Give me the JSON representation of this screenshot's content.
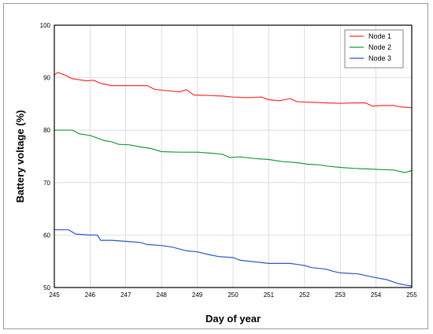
{
  "chart_data": {
    "type": "line",
    "xlabel": "Day of year",
    "ylabel": "Battery voltage (%)",
    "xlim": [
      245,
      255
    ],
    "ylim": [
      50,
      100
    ],
    "xticks": [
      "245",
      "246",
      "247",
      "248",
      "249",
      "250",
      "251",
      "252",
      "253",
      "254",
      "255"
    ],
    "yticks": [
      "50",
      "60",
      "70",
      "80",
      "90",
      "100"
    ],
    "grid": true,
    "legend_position": "top-right",
    "series": [
      {
        "name": "Node 1",
        "color": "#ff3030",
        "points": [
          [
            245,
            90.5
          ],
          [
            245.1,
            91
          ],
          [
            245.3,
            90.5
          ],
          [
            245.5,
            89.8
          ],
          [
            245.9,
            89.4
          ],
          [
            246.1,
            89.5
          ],
          [
            246.3,
            88.9
          ],
          [
            246.6,
            88.5
          ],
          [
            247,
            88.5
          ],
          [
            247.6,
            88.5
          ],
          [
            247.8,
            87.8
          ],
          [
            248.2,
            87.5
          ],
          [
            248.5,
            87.3
          ],
          [
            248.7,
            87.7
          ],
          [
            248.9,
            86.7
          ],
          [
            249.3,
            86.6
          ],
          [
            249.7,
            86.5
          ],
          [
            250,
            86.3
          ],
          [
            250.4,
            86.2
          ],
          [
            250.8,
            86.3
          ],
          [
            251,
            85.8
          ],
          [
            251.3,
            85.6
          ],
          [
            251.6,
            86
          ],
          [
            251.8,
            85.4
          ],
          [
            252.2,
            85.3
          ],
          [
            252.6,
            85.2
          ],
          [
            253,
            85.1
          ],
          [
            253.4,
            85.2
          ],
          [
            253.7,
            85.2
          ],
          [
            253.9,
            84.6
          ],
          [
            254.2,
            84.7
          ],
          [
            254.5,
            84.7
          ],
          [
            254.7,
            84.4
          ],
          [
            255,
            84.3
          ]
        ]
      },
      {
        "name": "Node 2",
        "color": "#1a9a3a",
        "points": [
          [
            245,
            80
          ],
          [
            245.5,
            80
          ],
          [
            245.7,
            79.3
          ],
          [
            246,
            79
          ],
          [
            246.2,
            78.5
          ],
          [
            246.4,
            78
          ],
          [
            246.6,
            77.8
          ],
          [
            246.8,
            77.3
          ],
          [
            247.1,
            77.2
          ],
          [
            247.4,
            76.8
          ],
          [
            247.7,
            76.5
          ],
          [
            248,
            75.9
          ],
          [
            248.5,
            75.8
          ],
          [
            249,
            75.8
          ],
          [
            249.4,
            75.6
          ],
          [
            249.7,
            75.4
          ],
          [
            249.9,
            74.8
          ],
          [
            250.2,
            74.9
          ],
          [
            250.6,
            74.6
          ],
          [
            251,
            74.4
          ],
          [
            251.4,
            74
          ],
          [
            251.8,
            73.8
          ],
          [
            252.1,
            73.5
          ],
          [
            252.4,
            73.4
          ],
          [
            252.7,
            73.1
          ],
          [
            253,
            72.9
          ],
          [
            253.4,
            72.7
          ],
          [
            253.8,
            72.6
          ],
          [
            254.1,
            72.5
          ],
          [
            254.5,
            72.4
          ],
          [
            254.8,
            71.9
          ],
          [
            255,
            72.3
          ]
        ]
      },
      {
        "name": "Node 3",
        "color": "#2a56c6",
        "points": [
          [
            245,
            61
          ],
          [
            245.4,
            61
          ],
          [
            245.6,
            60.2
          ],
          [
            246,
            60
          ],
          [
            246.2,
            60
          ],
          [
            246.3,
            59
          ],
          [
            246.6,
            59
          ],
          [
            247,
            58.8
          ],
          [
            247.4,
            58.6
          ],
          [
            247.6,
            58.2
          ],
          [
            248,
            58
          ],
          [
            248.3,
            57.7
          ],
          [
            248.7,
            57
          ],
          [
            249,
            56.8
          ],
          [
            249.3,
            56.3
          ],
          [
            249.6,
            55.9
          ],
          [
            250,
            55.7
          ],
          [
            250.2,
            55.2
          ],
          [
            250.6,
            54.9
          ],
          [
            251,
            54.6
          ],
          [
            251.6,
            54.6
          ],
          [
            252,
            54.2
          ],
          [
            252.2,
            53.8
          ],
          [
            252.6,
            53.5
          ],
          [
            252.8,
            53.1
          ],
          [
            253,
            52.8
          ],
          [
            253.5,
            52.6
          ],
          [
            253.9,
            52
          ],
          [
            254.3,
            51.5
          ],
          [
            254.6,
            50.8
          ],
          [
            254.8,
            50.5
          ],
          [
            255,
            50.3
          ]
        ]
      }
    ]
  }
}
